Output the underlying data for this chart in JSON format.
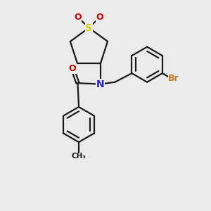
{
  "bg_color": "#ebebeb",
  "bond_color": "#1a1a1a",
  "N_color": "#2222cc",
  "O_color": "#cc0000",
  "S_color": "#cccc00",
  "Br_color": "#cc7722",
  "lw": 1.6,
  "figsize": [
    3.0,
    3.0
  ],
  "dpi": 100,
  "xlim": [
    0,
    10
  ],
  "ylim": [
    0,
    10
  ]
}
